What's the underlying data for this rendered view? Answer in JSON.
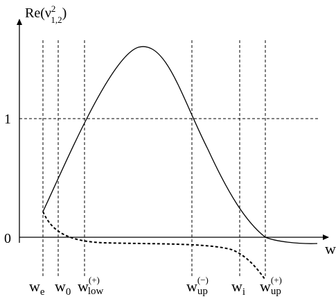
{
  "axes": {
    "y_label_main": "Re(ν",
    "y_label_sup": "2",
    "y_label_sub": "1,2",
    "y_label_close": ")",
    "x_label": "w",
    "tick_one": "1",
    "tick_zero": "0"
  },
  "markers": [
    {
      "id": "we",
      "main": "w",
      "sub": "e",
      "sup": ""
    },
    {
      "id": "w0",
      "main": "w",
      "sub": "0",
      "sup": ""
    },
    {
      "id": "wlow",
      "main": "w",
      "sub": "low",
      "sup": "(+)"
    },
    {
      "id": "wup_minus",
      "main": "w",
      "sub": "up",
      "sup": "(−)"
    },
    {
      "id": "wi",
      "main": "w",
      "sub": "i",
      "sup": ""
    },
    {
      "id": "wup_plus",
      "main": "w",
      "sub": "up",
      "sup": "(+)"
    }
  ],
  "curves": {
    "solid": "Re(ν²₁,₂) main branch",
    "dashed": "second branch"
  }
}
